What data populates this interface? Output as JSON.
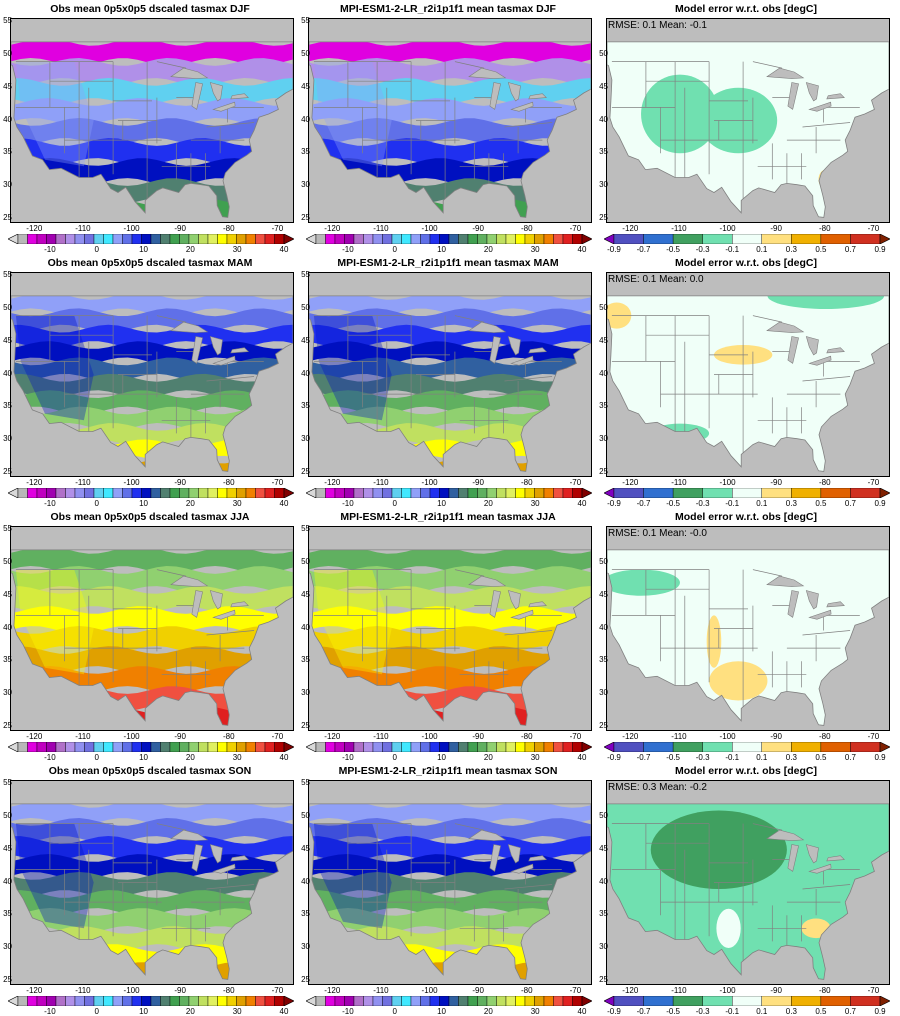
{
  "panels": [
    {
      "title": "Obs mean 0p5x0p5 dscaled tasmax DJF",
      "kind": "obs",
      "season": "DJF"
    },
    {
      "title": "MPI-ESM1-2-LR_r2i1p1f1 mean tasmax DJF",
      "kind": "model",
      "season": "DJF"
    },
    {
      "title": "Model error w.r.t. obs [degC]",
      "kind": "error",
      "season": "DJF",
      "metrics": "RMSE: 0.1  Mean: -0.1"
    },
    {
      "title": "Obs mean 0p5x0p5 dscaled tasmax MAM",
      "kind": "obs",
      "season": "MAM"
    },
    {
      "title": "MPI-ESM1-2-LR_r2i1p1f1 mean tasmax MAM",
      "kind": "model",
      "season": "MAM"
    },
    {
      "title": "Model error w.r.t. obs [degC]",
      "kind": "error",
      "season": "MAM",
      "metrics": "RMSE: 0.1  Mean: 0.0"
    },
    {
      "title": "Obs mean 0p5x0p5 dscaled tasmax JJA",
      "kind": "obs",
      "season": "JJA"
    },
    {
      "title": "MPI-ESM1-2-LR_r2i1p1f1 mean tasmax JJA",
      "kind": "model",
      "season": "JJA"
    },
    {
      "title": "Model error w.r.t. obs [degC]",
      "kind": "error",
      "season": "JJA",
      "metrics": "RMSE: 0.1  Mean: -0.0"
    },
    {
      "title": "Obs mean 0p5x0p5 dscaled tasmax SON",
      "kind": "obs",
      "season": "SON"
    },
    {
      "title": "MPI-ESM1-2-LR_r2i1p1f1 mean tasmax SON",
      "kind": "model",
      "season": "SON"
    },
    {
      "title": "Model error w.r.t. obs [degC]",
      "kind": "error",
      "season": "SON",
      "metrics": "RMSE: 0.3  Mean: -0.2"
    }
  ],
  "axes": {
    "lon_ticks": [
      "-120",
      "-110",
      "-100",
      "-90",
      "-80",
      "-70"
    ],
    "lat_ticks": [
      "55",
      "50",
      "45",
      "40",
      "35",
      "30",
      "25"
    ],
    "lon_range": [
      -125,
      -67
    ],
    "lat_range": [
      24.5,
      55.5
    ]
  },
  "colorbars": {
    "temp": {
      "labels": [
        "-10",
        "0",
        "10",
        "20",
        "30",
        "40"
      ],
      "colors": [
        "#d9d9d9",
        "#b8b8b8",
        "#e000e0",
        "#c000c0",
        "#a000b0",
        "#b070c8",
        "#b090e8",
        "#9090f0",
        "#7070e0",
        "#60d0f0",
        "#40e8ff",
        "#90a0f8",
        "#6070e8",
        "#2030f0",
        "#0010c0",
        "#3060a0",
        "#508070",
        "#40a050",
        "#60b060",
        "#90d070",
        "#c0e060",
        "#e0f060",
        "#ffff00",
        "#f0d000",
        "#e0a000",
        "#f08000",
        "#f05040",
        "#e02020",
        "#b00000",
        "#800000"
      ]
    },
    "error": {
      "labels": [
        "-0.9",
        "-0.7",
        "-0.5",
        "-0.3",
        "-0.1",
        "0.1",
        "0.3",
        "0.5",
        "0.7",
        "0.9"
      ],
      "colors": [
        "#8000c0",
        "#5050c0",
        "#3070d0",
        "#40a060",
        "#70e0b0",
        "#f0fff8",
        "#ffe080",
        "#f0b000",
        "#e06000",
        "#d03020",
        "#802000"
      ]
    }
  },
  "land_mask_colors": {
    "ocean": "#bdbdbd",
    "water_lakes": "#bdbdbd",
    "borders": "#808080"
  },
  "season_palettes": {
    "DJF": [
      "#e000e0",
      "#b090e8",
      "#60d0f0",
      "#90a0f8",
      "#6070e8",
      "#2030f0",
      "#0010c0",
      "#508070",
      "#40a050"
    ],
    "MAM": [
      "#90a0f8",
      "#6070e8",
      "#2030f0",
      "#0010c0",
      "#3060a0",
      "#508070",
      "#60b060",
      "#90d070",
      "#c0e060",
      "#ffff00",
      "#e0a000"
    ],
    "JJA": [
      "#60b060",
      "#90d070",
      "#c0e060",
      "#ffff00",
      "#f0d000",
      "#e0a000",
      "#f08000",
      "#f05040",
      "#e02020"
    ],
    "SON": [
      "#90a0f8",
      "#6070e8",
      "#2030f0",
      "#0010c0",
      "#508070",
      "#60b060",
      "#90d070",
      "#c0e060",
      "#ffff00",
      "#e0a000"
    ]
  },
  "error_patterns": {
    "DJF": {
      "base": "#f0fff8",
      "patches": [
        "#70e0b0",
        "#70e0b0",
        "#ffe080"
      ]
    },
    "MAM": {
      "base": "#f0fff8",
      "patches": [
        "#ffe080",
        "#ffe080",
        "#70e0b0",
        "#70e0b0"
      ]
    },
    "JJA": {
      "base": "#f0fff8",
      "patches": [
        "#70e0b0",
        "#ffe080",
        "#ffe080",
        "#70e0b0"
      ]
    },
    "SON": {
      "base": "#70e0b0",
      "patches": [
        "#40a060",
        "#f0fff8",
        "#ffe080"
      ]
    }
  }
}
